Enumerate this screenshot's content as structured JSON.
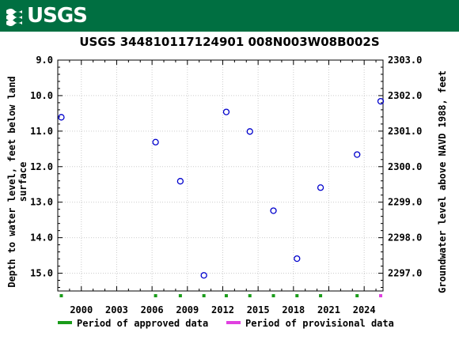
{
  "banner": {
    "logo_text": "USGS",
    "background": "#006f41"
  },
  "chart_data": {
    "type": "scatter",
    "title": "USGS 344810117124901 008N003W08B002S",
    "ylabel_left": "Depth to water level, feet below land surface",
    "ylabel_right": "Groundwater level above NAVD 1988, feet",
    "x_tick_labels": [
      "2000",
      "2003",
      "2006",
      "2009",
      "2012",
      "2015",
      "2018",
      "2021",
      "2024"
    ],
    "x_tick_values": [
      2000,
      2003,
      2006,
      2009,
      2012,
      2015,
      2018,
      2021,
      2024
    ],
    "xlim": [
      1998.0,
      2025.6
    ],
    "ylim_left": [
      9.0,
      15.5
    ],
    "y_left_tick_labels": [
      "9.0",
      "10.0",
      "11.0",
      "12.0",
      "13.0",
      "14.0",
      "15.0"
    ],
    "y_left_tick_values": [
      9.0,
      10.0,
      11.0,
      12.0,
      13.0,
      14.0,
      15.0
    ],
    "y_right_tick_labels": [
      "2303.0",
      "2302.0",
      "2301.0",
      "2300.0",
      "2299.0",
      "2298.0",
      "2297.0"
    ],
    "y_right_tick_values": [
      2303.0,
      2302.0,
      2301.0,
      2300.0,
      2299.0,
      2298.0,
      2297.0
    ],
    "right_axis_offset": 2312.0,
    "grid": true,
    "marker_color": "#0000cc",
    "series": [
      {
        "points": [
          {
            "x": 1998.3,
            "y": 10.61
          },
          {
            "x": 2006.3,
            "y": 11.31
          },
          {
            "x": 2008.4,
            "y": 12.41
          },
          {
            "x": 2010.4,
            "y": 15.06
          },
          {
            "x": 2012.3,
            "y": 10.46
          },
          {
            "x": 2014.3,
            "y": 11.01
          },
          {
            "x": 2016.3,
            "y": 13.24
          },
          {
            "x": 2018.3,
            "y": 14.59
          },
          {
            "x": 2020.3,
            "y": 12.59
          },
          {
            "x": 2023.4,
            "y": 11.66
          },
          {
            "x": 2025.4,
            "y": 10.16
          }
        ]
      }
    ],
    "approved_periods": [
      1998.3,
      2006.3,
      2008.4,
      2010.4,
      2012.3,
      2014.3,
      2016.3,
      2018.3,
      2020.3,
      2023.4
    ],
    "provisional_periods": [
      2025.4
    ],
    "approved_color": "#1a9c1a",
    "provisional_color": "#e040e0",
    "legend": {
      "placement": "bottom",
      "approved_label": "Period of approved data",
      "provisional_label": "Period of provisional data"
    }
  }
}
